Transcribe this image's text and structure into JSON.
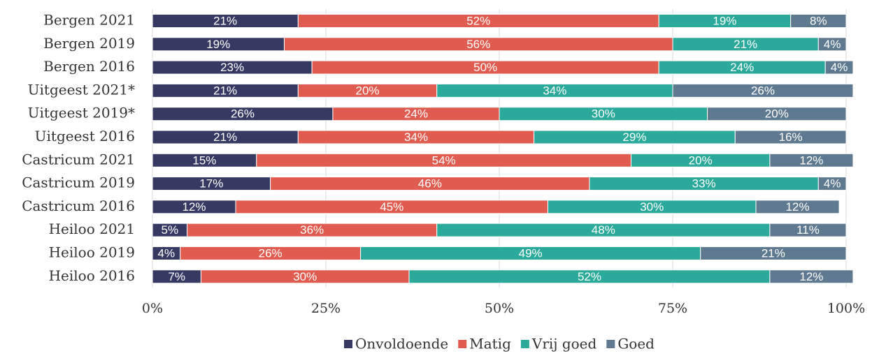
{
  "chart_data": {
    "type": "stacked-bar-horizontal",
    "categories": [
      "Bergen 2021",
      "Bergen 2019",
      "Bergen 2016",
      "Uitgeest 2021*",
      "Uitgeest 2019*",
      "Uitgeest 2016",
      "Castricum 2021",
      "Castricum 2019",
      "Castricum 2016",
      "Heiloo 2021",
      "Heiloo 2019",
      "Heiloo 2016"
    ],
    "series": [
      {
        "name": "Onvoldoende",
        "color": "#363a63",
        "values": [
          21,
          19,
          23,
          21,
          26,
          21,
          15,
          17,
          12,
          5,
          4,
          7
        ],
        "value_labels": [
          "21%",
          "19%",
          "23%",
          "21%",
          "26%",
          "21%",
          "15%",
          "17%",
          "12%",
          "5%",
          "4%",
          "7%"
        ]
      },
      {
        "name": "Matig",
        "color": "#e05c50",
        "values": [
          52,
          56,
          50,
          20,
          24,
          34,
          54,
          46,
          45,
          36,
          26,
          30
        ],
        "value_labels": [
          "52%",
          "56%",
          "50%",
          "20%",
          "24%",
          "34%",
          "54%",
          "46%",
          "45%",
          "36%",
          "26%",
          "30%"
        ]
      },
      {
        "name": "Vrij goed",
        "color": "#2ba99a",
        "values": [
          19,
          21,
          24,
          34,
          30,
          29,
          20,
          33,
          30,
          48,
          49,
          52
        ],
        "value_labels": [
          "19%",
          "21%",
          "24%",
          "34%",
          "30%",
          "29%",
          "20%",
          "33%",
          "30%",
          "48%",
          "49%",
          "52%"
        ]
      },
      {
        "name": "Goed",
        "color": "#5f7a90",
        "values": [
          8,
          4,
          4,
          26,
          20,
          16,
          12,
          4,
          12,
          11,
          21,
          12
        ],
        "value_labels": [
          "8%",
          "4%",
          "4%",
          "26%",
          "20%",
          "16%",
          "12%",
          "4%",
          "12%",
          "11%",
          "21%",
          "12%"
        ]
      }
    ],
    "xlim": [
      0,
      100
    ],
    "xticks": [
      {
        "value": 0,
        "label": "0%"
      },
      {
        "value": 25,
        "label": "25%"
      },
      {
        "value": 50,
        "label": "50%"
      },
      {
        "value": 75,
        "label": "75%"
      },
      {
        "value": 100,
        "label": "100%"
      }
    ],
    "grid": true,
    "legend": "bottom"
  }
}
